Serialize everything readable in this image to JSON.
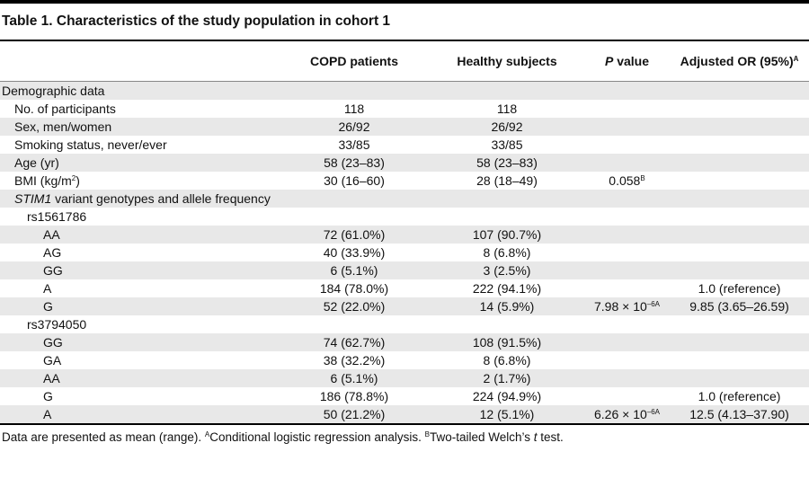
{
  "title": "Table 1. Characteristics of the study population in cohort 1",
  "headers": {
    "c1": "COPD patients",
    "c2": "Healthy subjects",
    "c3_italic": "P",
    "c3_rest": " value",
    "c4": "Adjusted OR (95%)",
    "c4_sup": "A"
  },
  "rows": {
    "demo": "Demographic data",
    "nparticipants": {
      "label": "No. of participants",
      "c1": "118",
      "c2": "118"
    },
    "sex": {
      "label": "Sex, men/women",
      "c1": "26/92",
      "c2": "26/92"
    },
    "smoking": {
      "label": "Smoking status, never/ever",
      "c1": "33/85",
      "c2": "33/85"
    },
    "age": {
      "label": "Age (yr)",
      "c1": "58 (23–83)",
      "c2": "58 (23–83)"
    },
    "bmi": {
      "label_pre": "BMI (kg/m",
      "label_sup": "2",
      "label_post": ")",
      "c1": "30 (16–60)",
      "c2": "28 (18–49)",
      "c3": "0.058",
      "c3_sup": "B"
    },
    "stim": {
      "italic": "STIM1",
      "rest": " variant genotypes and allele frequency"
    },
    "rs1": "rs1561786",
    "aa1": {
      "label": "AA",
      "c1": "72 (61.0%)",
      "c2": "107 (90.7%)"
    },
    "ag1": {
      "label": "AG",
      "c1": "40 (33.9%)",
      "c2": "8 (6.8%)"
    },
    "gg1": {
      "label": "GG",
      "c1": "6 (5.1%)",
      "c2": "3 (2.5%)"
    },
    "a1": {
      "label": "A",
      "c1": "184 (78.0%)",
      "c2": "222 (94.1%)",
      "c4": "1.0 (reference)"
    },
    "g1": {
      "label": "G",
      "c1": "52 (22.0%)",
      "c2": "14 (5.9%)",
      "c3": "7.98 × 10",
      "c3_sup": "–6A",
      "c4": "9.85 (3.65–26.59)"
    },
    "rs2": "rs3794050",
    "gg2": {
      "label": "GG",
      "c1": "74 (62.7%)",
      "c2": "108 (91.5%)"
    },
    "ga2": {
      "label": "GA",
      "c1": "38 (32.2%)",
      "c2": "8 (6.8%)"
    },
    "aa2": {
      "label": "AA",
      "c1": "6 (5.1%)",
      "c2": "2 (1.7%)"
    },
    "g2": {
      "label": "G",
      "c1": "186 (78.8%)",
      "c2": "224 (94.9%)",
      "c4": "1.0 (reference)"
    },
    "a2": {
      "label": "A",
      "c1": "50 (21.2%)",
      "c2": "12 (5.1%)",
      "c3": "6.26 × 10",
      "c3_sup": "–6A",
      "c4": "12.5 (4.13–37.90)"
    }
  },
  "footnote": {
    "text1": "Data are presented as mean (range). ",
    "supA": "A",
    "text2": "Conditional logistic regression analysis. ",
    "supB": "B",
    "text3": "Two-tailed Welch’s ",
    "t": "t",
    "text4": " test."
  }
}
